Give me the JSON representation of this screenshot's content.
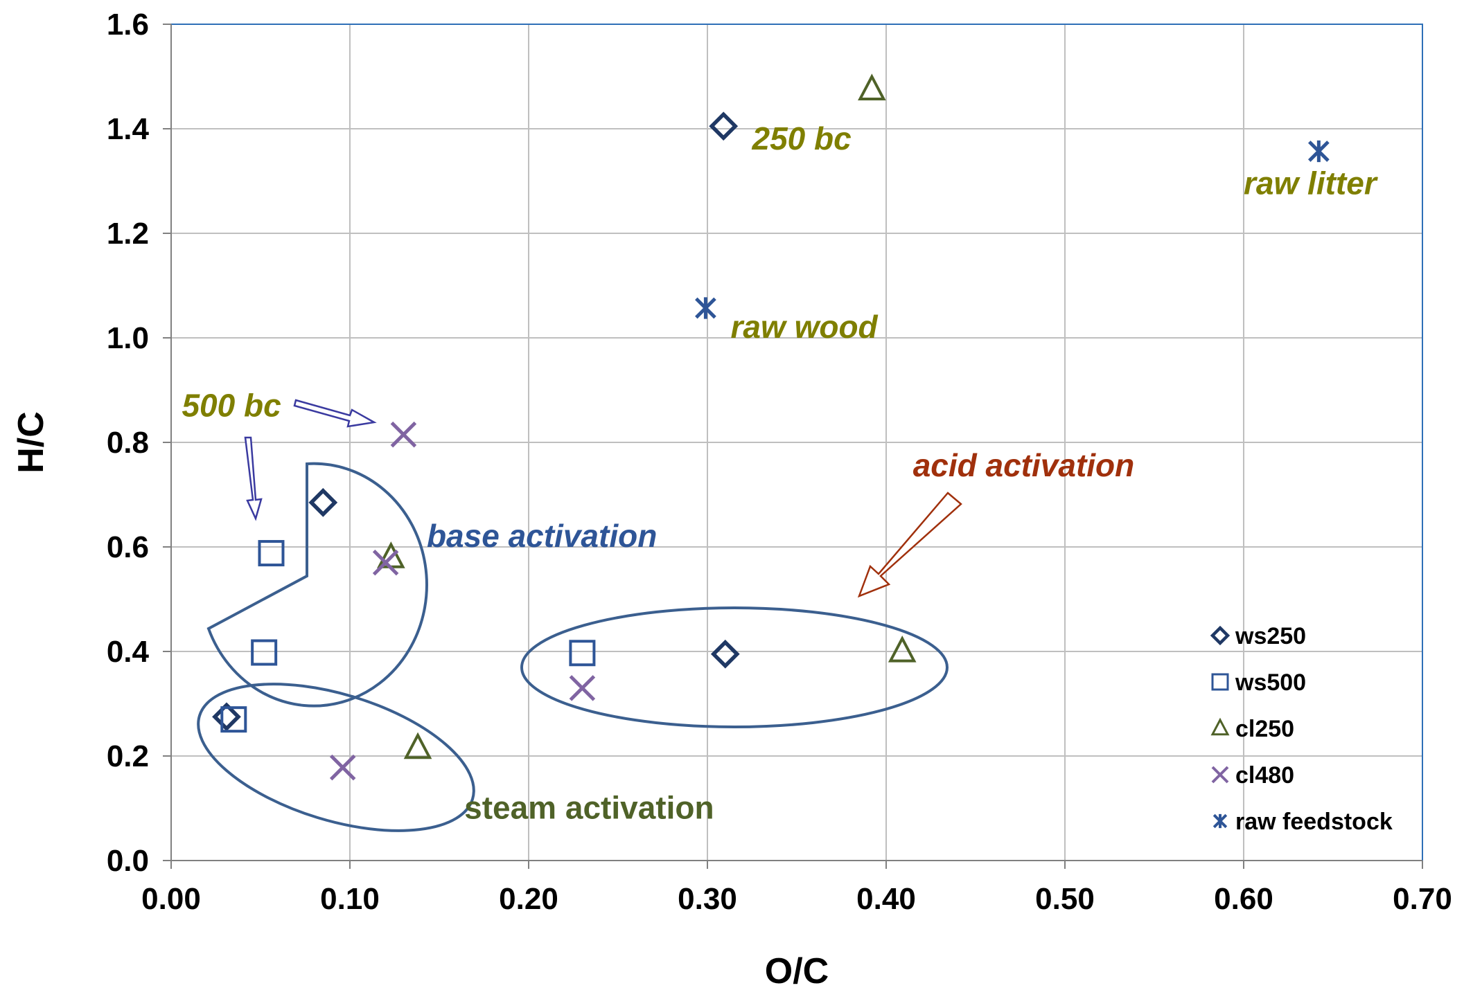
{
  "chart_data": {
    "type": "scatter",
    "xlabel": "O/C",
    "ylabel": "H/C",
    "xlim": [
      0.0,
      0.7
    ],
    "ylim": [
      0.0,
      1.6
    ],
    "grid": true,
    "legend_position": "bottom-right",
    "x_ticks": [
      "0.00",
      "0.10",
      "0.20",
      "0.30",
      "0.40",
      "0.50",
      "0.60",
      "0.70"
    ],
    "y_ticks": [
      "0.0",
      "0.2",
      "0.4",
      "0.6",
      "0.8",
      "1.0",
      "1.2",
      "1.4",
      "1.6"
    ],
    "series": [
      {
        "name": "ws250",
        "marker": "diamond",
        "color": "#1f3864",
        "points": [
          [
            0.031,
            0.275
          ],
          [
            0.085,
            0.685
          ],
          [
            0.31,
            0.395
          ],
          [
            0.309,
            1.405
          ]
        ]
      },
      {
        "name": "ws500",
        "marker": "square",
        "color": "#2e5597",
        "points": [
          [
            0.035,
            0.27
          ],
          [
            0.052,
            0.398
          ],
          [
            0.056,
            0.588
          ],
          [
            0.23,
            0.397
          ]
        ]
      },
      {
        "name": "cl250",
        "marker": "triangle",
        "color": "#4f6228",
        "points": [
          [
            0.138,
            0.215
          ],
          [
            0.123,
            0.58
          ],
          [
            0.409,
            0.4
          ],
          [
            0.392,
            1.475
          ]
        ]
      },
      {
        "name": "cl480",
        "marker": "x",
        "color": "#8064a2",
        "points": [
          [
            0.096,
            0.178
          ],
          [
            0.12,
            0.57
          ],
          [
            0.13,
            0.815
          ],
          [
            0.23,
            0.33
          ]
        ]
      },
      {
        "name": "raw feedstock",
        "marker": "star",
        "color": "#2e5597",
        "points": [
          [
            0.299,
            1.057
          ],
          [
            0.642,
            1.357
          ]
        ]
      }
    ],
    "annotations": [
      {
        "text": "250 bc",
        "x": 0.325,
        "y": 1.36,
        "color": "#7f7f00",
        "italic": true
      },
      {
        "text": "raw litter",
        "x": 0.6,
        "y": 1.275,
        "color": "#7f7f00",
        "italic": true
      },
      {
        "text": "raw wood",
        "x": 0.313,
        "y": 1.0,
        "color": "#7f7f00",
        "italic": true
      },
      {
        "text": "500 bc",
        "x": 0.006,
        "y": 0.85,
        "color": "#7f7f00",
        "italic": true
      },
      {
        "text": "acid activation",
        "x": 0.415,
        "y": 0.735,
        "color": "#a0300c",
        "italic": true
      },
      {
        "text": "base activation",
        "x": 0.143,
        "y": 0.6,
        "color": "#2e5597",
        "italic": true
      },
      {
        "text": "steam activation",
        "x": 0.164,
        "y": 0.08,
        "color": "#4f6228",
        "italic": false
      }
    ]
  }
}
